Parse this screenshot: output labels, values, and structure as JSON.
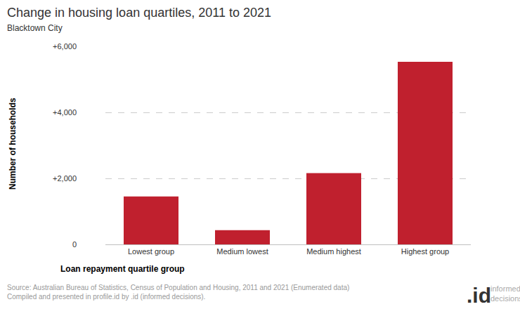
{
  "chart_data": {
    "type": "bar",
    "title": "Change in housing loan quartiles, 2011 to 2021",
    "subtitle": "Blacktown City",
    "x_label": "Loan repayment quartile group",
    "y_label": "Number of households",
    "categories": [
      "Lowest group",
      "Medium lowest",
      "Medium highest",
      "Highest group"
    ],
    "values": [
      1450,
      430,
      2160,
      5530
    ],
    "color": "#c0202e",
    "ylim": [
      0,
      6000
    ],
    "yticks": [
      0,
      {
        "value": 2000,
        "label": "+2,000"
      },
      {
        "value": 4000,
        "label": "+4,000"
      },
      {
        "value": 6000,
        "label": "+6,000"
      }
    ],
    "grid": true,
    "source": [
      "Source: Australian Bureau of Statistics, Census of Population and Housing, 2011 and 2021 (Enumerated data)",
      "Compiled and presented in profile.id by .id (informed decisions)."
    ],
    "logo": ".id",
    "logo_text": [
      "informed",
      "decisions"
    ]
  }
}
